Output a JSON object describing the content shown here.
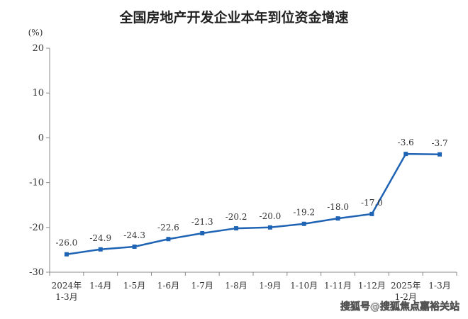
{
  "chart_data": {
    "type": "line",
    "title": "全国房地产开发企业本年到位资金增速",
    "unit": "(%)",
    "categories": [
      [
        "2024年",
        "1-3月"
      ],
      [
        "1-4月"
      ],
      [
        "1-5月"
      ],
      [
        "1-6月"
      ],
      [
        "1-7月"
      ],
      [
        "1-8月"
      ],
      [
        "1-9月"
      ],
      [
        "1-10月"
      ],
      [
        "1-11月"
      ],
      [
        "1-12月"
      ],
      [
        "2025年",
        "1-2月"
      ],
      [
        "1-3月"
      ]
    ],
    "values": [
      -26.0,
      -24.9,
      -24.3,
      -22.6,
      -21.3,
      -20.2,
      -20.0,
      -19.2,
      -18.0,
      -17.0,
      -3.6,
      -3.7
    ],
    "value_labels": [
      "-26.0",
      "-24.9",
      "-24.3",
      "-22.6",
      "-21.3",
      "-20.2",
      "-20.0",
      "-19.2",
      "-18.0",
      "-17.0",
      "-3.6",
      "-3.7"
    ],
    "ylim": [
      -30,
      20
    ],
    "yticks": [
      20,
      10,
      0,
      -10,
      -20,
      -30
    ],
    "grid": false,
    "line_color": "#1f64b4",
    "axis_color": "#888888"
  },
  "watermark": "搜狐号@搜狐焦点嘉裕关站"
}
